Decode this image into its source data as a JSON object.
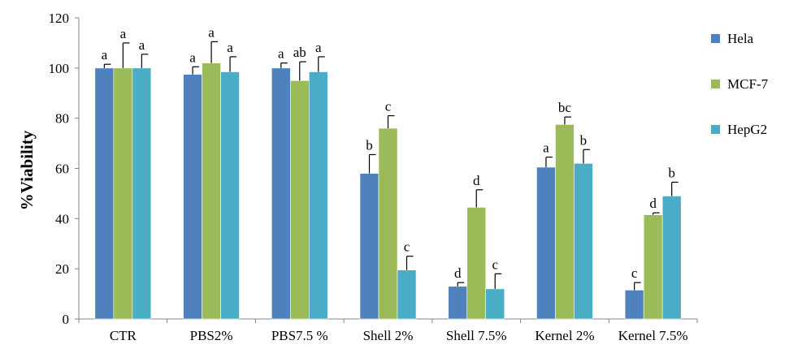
{
  "chart_data": {
    "type": "bar",
    "categories": [
      "CTR",
      "PBS2%",
      "PBS7.5 %",
      "Shell 2%",
      "Shell 7.5%",
      "Kernel 2%",
      "Kernel 7.5%"
    ],
    "ylabel": "%Viability",
    "xlabel": "",
    "ylim": [
      0,
      120
    ],
    "yticks": [
      0,
      20,
      40,
      60,
      80,
      100,
      120
    ],
    "grid": false,
    "legend_position": "right",
    "series": [
      {
        "name": "Hela",
        "color": "#4f81bd",
        "values": [
          100,
          97.5,
          100,
          58,
          13,
          60.5,
          11.5
        ],
        "errors": [
          1.5,
          3,
          2,
          7.5,
          1.5,
          4,
          3
        ],
        "letters": [
          "a",
          "a",
          "a",
          "b",
          "d",
          "a",
          "c"
        ]
      },
      {
        "name": "MCF-7",
        "color": "#9bbb59",
        "values": [
          100,
          102,
          95,
          76,
          44.5,
          77.5,
          41.5
        ],
        "errors": [
          10,
          8.5,
          7.5,
          5,
          7,
          3,
          0.8
        ],
        "letters": [
          "a",
          "a",
          "ab",
          "c",
          "d",
          "bc",
          "d"
        ]
      },
      {
        "name": "HepG2",
        "color": "#4bacc6",
        "values": [
          100,
          98.5,
          98.5,
          19.5,
          12,
          62,
          49
        ],
        "errors": [
          5.5,
          6,
          6,
          5.5,
          6,
          5.5,
          5.5
        ],
        "letters": [
          "a",
          "a",
          "a",
          "c",
          "c",
          "b",
          "b"
        ]
      }
    ]
  }
}
